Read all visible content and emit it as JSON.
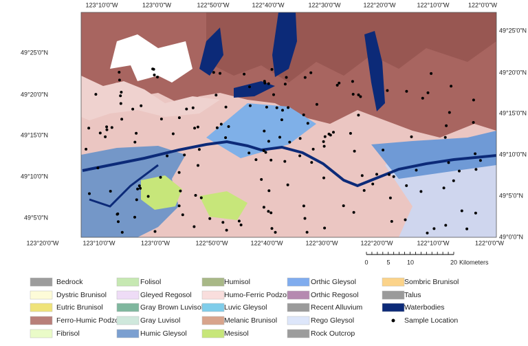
{
  "map": {
    "top_lon_labels": [
      "123°10'0\"W",
      "123°0'0\"W",
      "122°50'0\"W",
      "122°40'0\"W",
      "122°30'0\"W",
      "122°20'0\"W",
      "122°10'0\"W",
      "122°0'0\"W"
    ],
    "bottom_lon_labels": [
      "123°20'0\"W",
      "123°10'0\"W",
      "123°0'0\"W",
      "122°50'0\"W",
      "122°40'0\"W",
      "122°30'0\"W",
      "122°20'0\"W",
      "122°10'0\"W",
      "122°0'0\"W"
    ],
    "left_lat_labels": [
      "49°25'0\"N",
      "49°20'0\"N",
      "49°15'0\"N",
      "49°10'0\"N",
      "49°5'0\"N"
    ],
    "right_lat_labels": [
      "49°25'0\"N",
      "49°20'0\"N",
      "49°15'0\"N",
      "49°10'0\"N",
      "49°5'0\"N",
      "49°0'0\"N"
    ]
  },
  "scale_bar": {
    "labels": [
      "0",
      "5",
      "10",
      "20"
    ],
    "unit": "Kilometers"
  },
  "legend": {
    "items": [
      {
        "name": "Bedrock",
        "color": "#9c9c9c"
      },
      {
        "name": "Dystric Brunisol",
        "color": "#fdfbd8"
      },
      {
        "name": "Eutric Brunisol",
        "color": "#efe37a"
      },
      {
        "name": "Ferro-Humic Podzol",
        "color": "#b87f7a"
      },
      {
        "name": "Fibrisol",
        "color": "#eafbc8"
      },
      {
        "name": "Folisol",
        "color": "#c6e8b2"
      },
      {
        "name": "Gleyed Regosol",
        "color": "#eedcf6"
      },
      {
        "name": "Gray Brown Luvisol",
        "color": "#7fb79e"
      },
      {
        "name": "Gray Luvisol",
        "color": "#cfe8dc"
      },
      {
        "name": "Humic Gleysol",
        "color": "#7b9fd0"
      },
      {
        "name": "Humisol",
        "color": "#a8b887"
      },
      {
        "name": "Humo-Ferric Podzol",
        "color": "#f9dedd"
      },
      {
        "name": "Luvic Gleysol",
        "color": "#7fcdea"
      },
      {
        "name": "Melanic Brunisol",
        "color": "#d8a48c"
      },
      {
        "name": "Mesisol",
        "color": "#c7e67a"
      },
      {
        "name": "Orthic Gleysol",
        "color": "#80acee"
      },
      {
        "name": "Orthic Regosol",
        "color": "#b58ab0"
      },
      {
        "name": "Recent Alluvium",
        "color": "#9a9a9a"
      },
      {
        "name": "Rego Gleysol",
        "color": "#dde6fa"
      },
      {
        "name": "Rock Outcrop",
        "color": "#9c9c9c"
      },
      {
        "name": "Sombric Brunisol",
        "color": "#fbd38a"
      },
      {
        "name": "Talus",
        "color": "#9a9a9a"
      },
      {
        "name": "Waterbodies",
        "color": "#0c2a78"
      },
      {
        "name": "Sample Location",
        "color": "#000000",
        "marker": "dot"
      }
    ]
  }
}
